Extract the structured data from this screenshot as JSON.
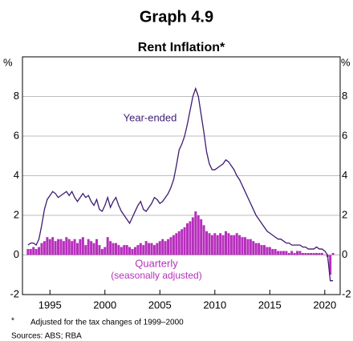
{
  "chart_data": {
    "type": "bar_line",
    "title": "Graph 4.9",
    "subtitle": "Rent Inflation*",
    "y_unit": "%",
    "footnote_marker": "*",
    "footnote": "Adjusted for the tax changes of 1999–2000",
    "source": "Sources: ABS; RBA",
    "annotations": [
      "Year-ended",
      "Quarterly",
      "(seasonally adjusted)"
    ],
    "xlim": [
      1992.5,
      2021.4
    ],
    "xticks": [
      1995,
      2000,
      2005,
      2010,
      2015,
      2020
    ],
    "ylim": [
      -2,
      10
    ],
    "yticks": [
      -2,
      0,
      2,
      4,
      6,
      8
    ],
    "grid": true,
    "x": [
      1993,
      1993.25,
      1993.5,
      1993.75,
      1994,
      1994.25,
      1994.5,
      1994.75,
      1995,
      1995.25,
      1995.5,
      1995.75,
      1996,
      1996.25,
      1996.5,
      1996.75,
      1997,
      1997.25,
      1997.5,
      1997.75,
      1998,
      1998.25,
      1998.5,
      1998.75,
      1999,
      1999.25,
      1999.5,
      1999.75,
      2000,
      2000.25,
      2000.5,
      2000.75,
      2001,
      2001.25,
      2001.5,
      2001.75,
      2002,
      2002.25,
      2002.5,
      2002.75,
      2003,
      2003.25,
      2003.5,
      2003.75,
      2004,
      2004.25,
      2004.5,
      2004.75,
      2005,
      2005.25,
      2005.5,
      2005.75,
      2006,
      2006.25,
      2006.5,
      2006.75,
      2007,
      2007.25,
      2007.5,
      2007.75,
      2008,
      2008.25,
      2008.5,
      2008.75,
      2009,
      2009.25,
      2009.5,
      2009.75,
      2010,
      2010.25,
      2010.5,
      2010.75,
      2011,
      2011.25,
      2011.5,
      2011.75,
      2012,
      2012.25,
      2012.5,
      2012.75,
      2013,
      2013.25,
      2013.5,
      2013.75,
      2014,
      2014.25,
      2014.5,
      2014.75,
      2015,
      2015.25,
      2015.5,
      2015.75,
      2016,
      2016.25,
      2016.5,
      2016.75,
      2017,
      2017.25,
      2017.5,
      2017.75,
      2018,
      2018.25,
      2018.5,
      2018.75,
      2019,
      2019.25,
      2019.5,
      2019.75,
      2020,
      2020.25,
      2020.5,
      2020.75
    ],
    "series": [
      {
        "name": "Quarterly",
        "kind": "bar",
        "color": "#b72fbd",
        "values": [
          0.3,
          0.3,
          0.4,
          0.3,
          0.4,
          0.6,
          0.7,
          0.9,
          0.8,
          0.9,
          0.7,
          0.8,
          0.8,
          0.7,
          0.9,
          0.8,
          0.7,
          0.8,
          0.6,
          0.8,
          0.9,
          0.5,
          0.8,
          0.7,
          0.6,
          0.8,
          0.5,
          0.3,
          0.4,
          0.9,
          0.7,
          0.6,
          0.6,
          0.5,
          0.4,
          0.5,
          0.5,
          0.4,
          0.3,
          0.4,
          0.5,
          0.6,
          0.5,
          0.7,
          0.6,
          0.6,
          0.5,
          0.6,
          0.7,
          0.8,
          0.7,
          0.8,
          0.9,
          1.0,
          1.1,
          1.2,
          1.3,
          1.4,
          1.6,
          1.7,
          1.9,
          2.2,
          2.0,
          1.8,
          1.5,
          1.2,
          1.1,
          1.0,
          1.1,
          1.0,
          1.1,
          1.0,
          1.2,
          1.1,
          1.0,
          1.0,
          1.1,
          1.0,
          0.9,
          0.9,
          0.8,
          0.8,
          0.7,
          0.6,
          0.6,
          0.5,
          0.5,
          0.4,
          0.4,
          0.3,
          0.3,
          0.2,
          0.2,
          0.2,
          0.2,
          0.1,
          0.2,
          0.1,
          0.2,
          0.2,
          0.1,
          0.1,
          0.1,
          0.1,
          0.1,
          0.1,
          0.1,
          0.1,
          0.0,
          -0.1,
          -1.0,
          0.1
        ]
      },
      {
        "name": "Year-ended",
        "kind": "line",
        "color": "#3d1c72",
        "values": [
          0.5,
          0.6,
          0.6,
          0.5,
          0.8,
          1.5,
          2.3,
          2.8,
          3.0,
          3.2,
          3.1,
          2.9,
          3.0,
          3.1,
          3.2,
          3.0,
          3.2,
          2.9,
          2.7,
          2.9,
          3.1,
          2.9,
          3.0,
          2.7,
          2.5,
          2.8,
          2.3,
          2.2,
          2.5,
          2.9,
          2.4,
          2.7,
          2.9,
          2.5,
          2.2,
          2.0,
          1.8,
          1.6,
          1.9,
          2.2,
          2.5,
          2.7,
          2.3,
          2.2,
          2.4,
          2.6,
          2.9,
          2.8,
          2.6,
          2.7,
          2.9,
          3.1,
          3.4,
          3.8,
          4.5,
          5.3,
          5.6,
          6.0,
          6.6,
          7.3,
          8.0,
          8.4,
          8.0,
          7.1,
          6.2,
          5.2,
          4.6,
          4.3,
          4.3,
          4.4,
          4.5,
          4.6,
          4.8,
          4.7,
          4.5,
          4.3,
          4.0,
          3.8,
          3.5,
          3.2,
          2.9,
          2.6,
          2.3,
          2.0,
          1.8,
          1.6,
          1.4,
          1.2,
          1.1,
          1.0,
          0.9,
          0.8,
          0.8,
          0.7,
          0.6,
          0.6,
          0.5,
          0.5,
          0.5,
          0.5,
          0.4,
          0.4,
          0.3,
          0.3,
          0.3,
          0.4,
          0.3,
          0.3,
          0.2,
          0.0,
          -1.3,
          -1.3
        ]
      }
    ]
  }
}
